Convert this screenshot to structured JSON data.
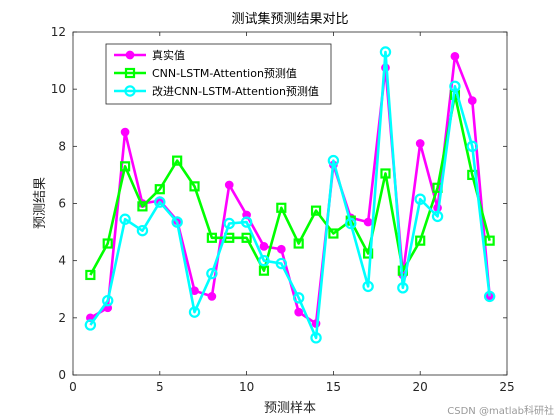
{
  "chart_data": {
    "type": "line",
    "title": "测试集预测结果对比",
    "xlabel": "预测样本",
    "ylabel": "预测结果",
    "xlim": [
      0,
      25
    ],
    "ylim": [
      0,
      12
    ],
    "xticks": [
      0,
      5,
      10,
      15,
      20,
      25
    ],
    "yticks": [
      0,
      2,
      4,
      6,
      8,
      10,
      12
    ],
    "x": [
      1,
      2,
      3,
      4,
      5,
      6,
      7,
      8,
      9,
      10,
      11,
      12,
      13,
      14,
      15,
      16,
      17,
      18,
      19,
      20,
      21,
      22,
      23,
      24
    ],
    "legend_position": "top-left",
    "grid": false,
    "series": [
      {
        "name": "真实值",
        "color": "#ff00ff",
        "marker": "circle-filled",
        "values": [
          2.0,
          2.35,
          8.5,
          6.0,
          6.1,
          5.4,
          2.95,
          2.75,
          6.65,
          5.6,
          4.5,
          4.4,
          2.2,
          1.8,
          7.35,
          5.5,
          5.35,
          10.75,
          3.5,
          8.1,
          5.85,
          11.15,
          9.6,
          2.75
        ]
      },
      {
        "name": "CNN-LSTM-Attention预测值",
        "color": "#00ff00",
        "marker": "square-open",
        "values": [
          3.5,
          4.6,
          7.3,
          5.9,
          6.5,
          7.5,
          6.6,
          4.8,
          4.8,
          4.8,
          3.65,
          5.85,
          4.6,
          5.75,
          4.95,
          5.4,
          4.25,
          7.05,
          3.65,
          4.7,
          6.55,
          9.8,
          7.0,
          4.7
        ]
      },
      {
        "name": "改进CNN-LSTM-Attention预测值",
        "color": "#00ffff",
        "marker": "circle-open",
        "values": [
          1.75,
          2.6,
          5.45,
          5.05,
          6.05,
          5.35,
          2.2,
          3.55,
          5.3,
          5.35,
          4.0,
          3.9,
          2.7,
          1.3,
          7.5,
          5.3,
          3.1,
          11.3,
          3.05,
          6.15,
          5.55,
          10.1,
          8.0,
          2.75
        ]
      }
    ]
  },
  "watermark": "CSDN @matlab科研社"
}
